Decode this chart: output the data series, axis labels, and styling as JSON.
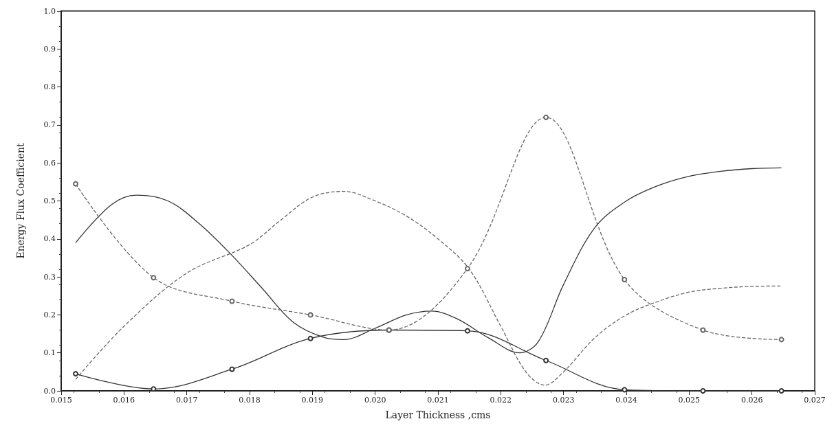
{
  "chart_data": {
    "type": "line",
    "xlabel": "Layer Thickness ,cms",
    "ylabel": "Energy Flux Coefficient",
    "xlim": [
      0.015,
      0.027
    ],
    "xticks": [
      0.015,
      0.016,
      0.017,
      0.018,
      0.019,
      {
        "value": 0.02,
        "label": "0.020"
      },
      0.021,
      0.022,
      0.023,
      0.024,
      0.025,
      0.026,
      0.027
    ],
    "ylim": [
      0,
      1
    ],
    "yticks": [
      {
        "value": 0,
        "label": "0.0"
      },
      0.1,
      0.2,
      0.3,
      0.4,
      0.5,
      0.6,
      0.7,
      0.8,
      0.9,
      {
        "value": 1,
        "label": "1.0"
      }
    ],
    "series": [
      {
        "color": "#333333",
        "line_style": "solid",
        "marker": "none",
        "x": [
          0.01523,
          0.0158,
          0.0162,
          0.0167,
          0.0172,
          0.0177,
          0.0182,
          0.0187,
          0.0192,
          0.0195,
          0.02,
          0.0205,
          0.0209,
          0.0213,
          0.0218,
          0.0223,
          0.0226,
          0.023,
          0.0235,
          0.024,
          0.0245,
          0.025,
          0.0255,
          0.026,
          0.02647
        ],
        "values": [
          0.39,
          0.49,
          0.515,
          0.5,
          0.44,
          0.36,
          0.27,
          0.18,
          0.14,
          0.135,
          0.165,
          0.2,
          0.21,
          0.19,
          0.14,
          0.1,
          0.13,
          0.28,
          0.43,
          0.5,
          0.54,
          0.565,
          0.578,
          0.585,
          0.587
        ]
      },
      {
        "color": "#666666",
        "line_style": "dashed",
        "marker": "none",
        "x": [
          0.01523,
          0.016,
          0.017,
          0.018,
          0.0185,
          0.019,
          0.0195,
          0.02,
          0.0205,
          0.021,
          0.0215,
          0.022,
          0.0224,
          0.0227,
          0.023,
          0.0235,
          0.024,
          0.0245,
          0.025,
          0.0255,
          0.026,
          0.02647
        ],
        "values": [
          0.03,
          0.17,
          0.31,
          0.385,
          0.45,
          0.51,
          0.525,
          0.5,
          0.46,
          0.4,
          0.32,
          0.17,
          0.05,
          0.015,
          0.05,
          0.14,
          0.2,
          0.235,
          0.26,
          0.27,
          0.275,
          0.276
        ]
      },
      {
        "color": "#333333",
        "line_style": "solid",
        "marker": "circle",
        "x": [
          0.01523,
          0.01647,
          0.01772,
          0.01897,
          0.02022,
          0.02147,
          0.02272,
          0.02397,
          0.02522,
          0.02647
        ],
        "values": [
          0.045,
          0.005,
          0.057,
          0.138,
          0.16,
          0.158,
          0.08,
          0.003,
          0,
          0
        ]
      },
      {
        "color": "#666666",
        "line_style": "dashed",
        "marker": "circle",
        "x": [
          0.01523,
          0.01647,
          0.01772,
          0.01897,
          0.02022,
          0.02147,
          0.02272,
          0.02397,
          0.02522,
          0.02647
        ],
        "values": [
          0.545,
          0.298,
          0.236,
          0.2,
          0.16,
          0.322,
          0.72,
          0.293,
          0.16,
          0.135
        ]
      }
    ]
  }
}
